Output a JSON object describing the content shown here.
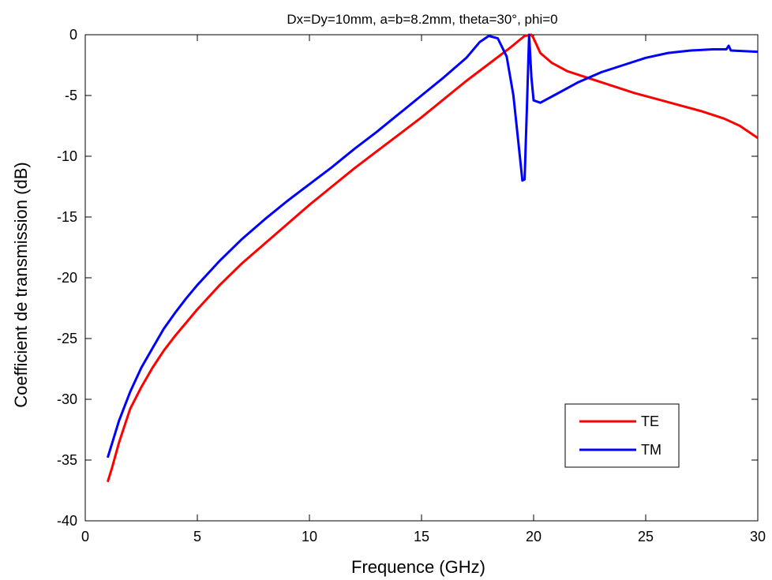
{
  "chart_data": {
    "type": "line",
    "title": "Dx=Dy=10mm, a=b=8.2mm, theta=30°, phi=0",
    "xlabel": "Frequence (GHz)",
    "ylabel": "Coefficient de transmission (dB)",
    "xlim": [
      0,
      30
    ],
    "ylim": [
      -40,
      0
    ],
    "xticks": [
      0,
      5,
      10,
      15,
      20,
      25,
      30
    ],
    "xtick_labels": [
      "0",
      "5",
      "10",
      "15",
      "20",
      "25",
      "30"
    ],
    "yticks": [
      0,
      -5,
      -10,
      -15,
      -20,
      -25,
      -30,
      -35,
      -40
    ],
    "ytick_labels": [
      "0",
      "-5",
      "-10",
      "-15",
      "-20",
      "-25",
      "-30",
      "-35",
      "-40"
    ],
    "grid": false,
    "legend_position": "bottom-right",
    "series": [
      {
        "name": "TE",
        "color": "#ff0000",
        "points": [
          [
            1.0,
            -36.8
          ],
          [
            1.2,
            -35.6
          ],
          [
            1.5,
            -33.6
          ],
          [
            2.0,
            -30.8
          ],
          [
            2.5,
            -29.0
          ],
          [
            3.0,
            -27.4
          ],
          [
            3.5,
            -26.0
          ],
          [
            4.0,
            -24.8
          ],
          [
            4.5,
            -23.7
          ],
          [
            5.0,
            -22.6
          ],
          [
            6.0,
            -20.6
          ],
          [
            7.0,
            -18.8
          ],
          [
            8.0,
            -17.2
          ],
          [
            9.0,
            -15.6
          ],
          [
            10.0,
            -14.0
          ],
          [
            11.0,
            -12.5
          ],
          [
            12.0,
            -11.0
          ],
          [
            13.0,
            -9.6
          ],
          [
            14.0,
            -8.2
          ],
          [
            15.0,
            -6.8
          ],
          [
            16.0,
            -5.3
          ],
          [
            17.0,
            -3.8
          ],
          [
            18.0,
            -2.4
          ],
          [
            19.0,
            -1.0
          ],
          [
            19.6,
            -0.1
          ],
          [
            19.9,
            0.0
          ],
          [
            20.0,
            -0.3
          ],
          [
            20.3,
            -1.5
          ],
          [
            20.8,
            -2.3
          ],
          [
            21.5,
            -3.0
          ],
          [
            22.5,
            -3.6
          ],
          [
            23.5,
            -4.2
          ],
          [
            24.5,
            -4.8
          ],
          [
            25.5,
            -5.3
          ],
          [
            26.5,
            -5.8
          ],
          [
            27.5,
            -6.3
          ],
          [
            28.5,
            -6.9
          ],
          [
            29.2,
            -7.5
          ],
          [
            30.0,
            -8.5
          ]
        ]
      },
      {
        "name": "TM",
        "color": "#0000ff",
        "points": [
          [
            1.0,
            -34.8
          ],
          [
            1.2,
            -33.6
          ],
          [
            1.5,
            -31.8
          ],
          [
            2.0,
            -29.4
          ],
          [
            2.5,
            -27.4
          ],
          [
            3.0,
            -25.8
          ],
          [
            3.5,
            -24.2
          ],
          [
            4.0,
            -22.9
          ],
          [
            4.5,
            -21.7
          ],
          [
            5.0,
            -20.6
          ],
          [
            6.0,
            -18.6
          ],
          [
            7.0,
            -16.8
          ],
          [
            8.0,
            -15.2
          ],
          [
            9.0,
            -13.7
          ],
          [
            10.0,
            -12.3
          ],
          [
            11.0,
            -10.9
          ],
          [
            12.0,
            -9.4
          ],
          [
            13.0,
            -8.0
          ],
          [
            14.0,
            -6.5
          ],
          [
            15.0,
            -5.0
          ],
          [
            16.0,
            -3.5
          ],
          [
            17.0,
            -1.9
          ],
          [
            17.6,
            -0.6
          ],
          [
            18.0,
            -0.1
          ],
          [
            18.4,
            -0.3
          ],
          [
            18.8,
            -1.8
          ],
          [
            19.1,
            -5.0
          ],
          [
            19.3,
            -8.5
          ],
          [
            19.5,
            -12.0
          ],
          [
            19.6,
            -11.9
          ],
          [
            19.7,
            -6.0
          ],
          [
            19.8,
            0.0
          ],
          [
            19.9,
            -3.5
          ],
          [
            20.0,
            -5.4
          ],
          [
            20.3,
            -5.6
          ],
          [
            21.0,
            -4.9
          ],
          [
            22.0,
            -3.9
          ],
          [
            23.0,
            -3.1
          ],
          [
            24.0,
            -2.5
          ],
          [
            25.0,
            -1.9
          ],
          [
            26.0,
            -1.5
          ],
          [
            27.0,
            -1.3
          ],
          [
            28.0,
            -1.2
          ],
          [
            28.6,
            -1.2
          ],
          [
            28.7,
            -0.9
          ],
          [
            28.8,
            -1.3
          ],
          [
            30.0,
            -1.4
          ]
        ]
      }
    ]
  }
}
